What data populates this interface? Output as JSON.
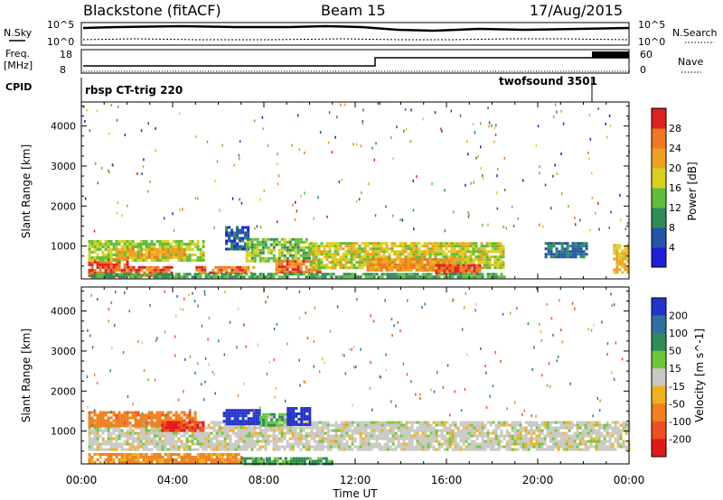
{
  "header": {
    "title": "Blackstone (fitACF)",
    "beam": "Beam 15",
    "date": "17/Aug/2015"
  },
  "top_panel": {
    "left_label_noise": "N.Sky",
    "noise_tick_high": "10^5",
    "noise_tick_low": "10^0",
    "right_label_noise": "N.Search",
    "freq_label_line1": "Freq.",
    "freq_label_line2": "[MHz]",
    "freq_tick_high": "18",
    "freq_tick_low": "8",
    "nave_tick_high": "60",
    "nave_tick_low": "0",
    "right_label_nave": "Nave",
    "cpid_label": "CPID",
    "cpid_1": "rbsp CT-trig 220",
    "cpid_2": "twofsound 3501"
  },
  "axes": {
    "xlabel": "Time UT",
    "x_ticks": [
      "00:00",
      "04:00",
      "08:00",
      "12:00",
      "16:00",
      "20:00",
      "00:00"
    ],
    "ylabel": "Slant Range [km]",
    "y_ticks": [
      "1000",
      "2000",
      "3000",
      "4000"
    ]
  },
  "colorbar_power": {
    "label": "Power [dB]",
    "ticks": [
      "4",
      "8",
      "12",
      "16",
      "20",
      "24",
      "28"
    ],
    "colors": [
      "#1f1fd8",
      "#2255aa",
      "#2e8c5a",
      "#5fbf3a",
      "#d8d020",
      "#f0a020",
      "#f07820",
      "#e02020"
    ]
  },
  "colorbar_velocity": {
    "label": "Velocity [m s^-1]",
    "ticks": [
      "200",
      "100",
      "50",
      "15",
      "-15",
      "-50",
      "-100",
      "-200"
    ],
    "colors": [
      "#2233cc",
      "#2f6f9f",
      "#2e8c5a",
      "#6cc83a",
      "#c8c8c4",
      "#f0b020",
      "#f08020",
      "#f05020",
      "#e01818"
    ]
  },
  "chart_data": [
    {
      "type": "heatmap",
      "title": "Power",
      "xlabel": "Time UT",
      "ylabel": "Slant Range [km]",
      "xlim_hours": [
        0,
        24
      ],
      "ylim_km": [
        180,
        4600
      ],
      "colorbar": {
        "label": "Power [dB]",
        "range": [
          0,
          32
        ]
      },
      "regions": [
        {
          "t": [
            0.3,
            2.0
          ],
          "r": [
            250,
            700
          ],
          "value": 28
        },
        {
          "t": [
            0.3,
            5.3
          ],
          "r": [
            650,
            1150
          ],
          "value": 16
        },
        {
          "t": [
            1.5,
            4.5
          ],
          "r": [
            700,
            950
          ],
          "value": 22
        },
        {
          "t": [
            2.0,
            4.0
          ],
          "r": [
            250,
            500
          ],
          "value": 27
        },
        {
          "t": [
            5.0,
            7.5
          ],
          "r": [
            300,
            500
          ],
          "value": 26
        },
        {
          "t": [
            6.3,
            7.3
          ],
          "r": [
            900,
            1500
          ],
          "value": 6
        },
        {
          "t": [
            7.2,
            10.0
          ],
          "r": [
            600,
            1200
          ],
          "value": 14
        },
        {
          "t": [
            8.5,
            10.5
          ],
          "r": [
            350,
            650
          ],
          "value": 26
        },
        {
          "t": [
            10.0,
            18.5
          ],
          "r": [
            450,
            1100
          ],
          "value": 18
        },
        {
          "t": [
            12.5,
            16.5
          ],
          "r": [
            380,
            700
          ],
          "value": 24
        },
        {
          "t": [
            15.5,
            17.5
          ],
          "r": [
            300,
            550
          ],
          "value": 28
        },
        {
          "t": [
            20.3,
            22.2
          ],
          "r": [
            700,
            1100
          ],
          "value": 8
        },
        {
          "t": [
            23.3,
            24.0
          ],
          "r": [
            350,
            1050
          ],
          "value": 20
        },
        {
          "t": [
            0.3,
            18.5
          ],
          "r": [
            200,
            330
          ],
          "value": 12
        }
      ]
    },
    {
      "type": "heatmap",
      "title": "Velocity",
      "xlabel": "Time UT",
      "ylabel": "Slant Range [km]",
      "xlim_hours": [
        0,
        24
      ],
      "ylim_km": [
        180,
        4600
      ],
      "colorbar": {
        "label": "Velocity [m s^-1]",
        "range": [
          -250,
          250
        ]
      },
      "regions": [
        {
          "t": [
            0.3,
            24.0
          ],
          "r": [
            550,
            1250
          ],
          "value": 0
        },
        {
          "t": [
            0.3,
            5.0
          ],
          "r": [
            1100,
            1500
          ],
          "value": -60
        },
        {
          "t": [
            3.5,
            5.3
          ],
          "r": [
            1000,
            1250
          ],
          "value": -150
        },
        {
          "t": [
            6.2,
            7.8
          ],
          "r": [
            1150,
            1550
          ],
          "value": 200
        },
        {
          "t": [
            7.8,
            9.2
          ],
          "r": [
            1150,
            1450
          ],
          "value": 30
        },
        {
          "t": [
            9.0,
            10.0
          ],
          "r": [
            1150,
            1600
          ],
          "value": 200
        },
        {
          "t": [
            0.3,
            7.0
          ],
          "r": [
            200,
            450
          ],
          "value": -40
        },
        {
          "t": [
            7.0,
            11.0
          ],
          "r": [
            200,
            350
          ],
          "value": 40
        }
      ]
    }
  ]
}
